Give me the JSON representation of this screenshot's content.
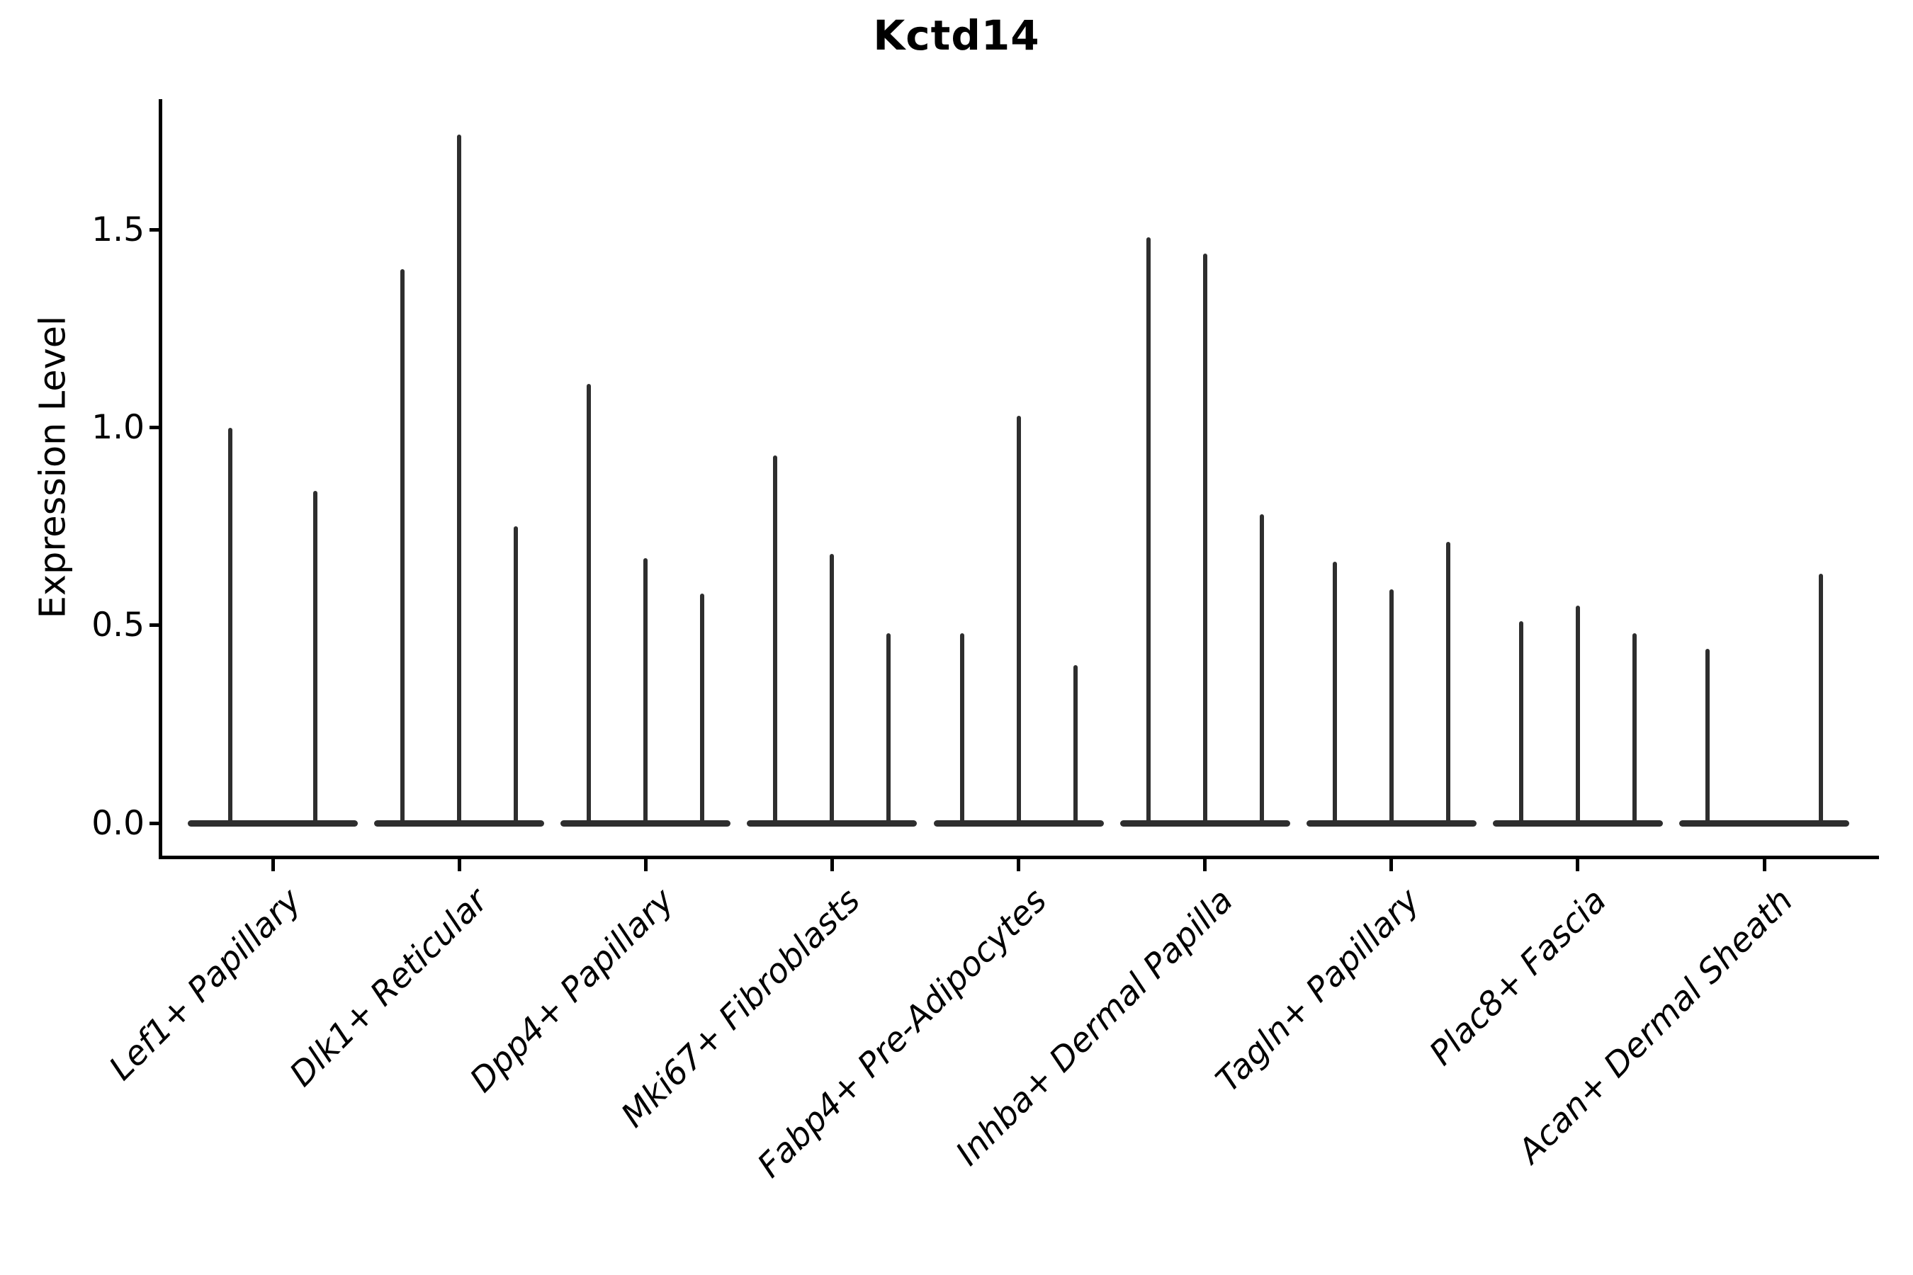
{
  "chart_data": {
    "type": "violin",
    "title": "Kctd14",
    "xlabel": "",
    "ylabel": "Expression Level",
    "yticks": [
      "0.0",
      "0.5",
      "1.0",
      "1.5"
    ],
    "ylim": [
      -0.09,
      1.83
    ],
    "grid": false,
    "legend": "none",
    "categories": [
      "Lef1+ Papillary",
      "Dlk1+ Reticular",
      "Dpp4+ Papillary",
      "Mki67+ Fibroblasts",
      "Fabp4+ Pre-Adipocytes",
      "Inhba+ Dermal Papilla",
      "Tagln+ Papillary",
      "Plac8+ Fascia",
      "Acan+ Dermal Sheath"
    ],
    "groups": [
      {
        "category": "Lef1+ Papillary",
        "violin_maxima": [
          1.0,
          0.84
        ]
      },
      {
        "category": "Dlk1+ Reticular",
        "violin_maxima": [
          1.4,
          1.74,
          0.75
        ]
      },
      {
        "category": "Dpp4+ Papillary",
        "violin_maxima": [
          1.11,
          0.67,
          0.58
        ]
      },
      {
        "category": "Mki67+ Fibroblasts",
        "violin_maxima": [
          0.93,
          0.68,
          0.48
        ]
      },
      {
        "category": "Fabp4+ Pre-Adipocytes",
        "violin_maxima": [
          0.48,
          1.03,
          0.4
        ]
      },
      {
        "category": "Inhba+ Dermal Papilla",
        "violin_maxima": [
          1.48,
          1.44,
          0.78
        ]
      },
      {
        "category": "Tagln+ Papillary",
        "violin_maxima": [
          0.66,
          0.59,
          0.71
        ]
      },
      {
        "category": "Plac8+ Fascia",
        "violin_maxima": [
          0.51,
          0.55,
          0.48
        ]
      },
      {
        "category": "Acan+ Dermal Sheath",
        "violin_maxima": [
          0.44,
          0.0,
          0.63
        ]
      }
    ],
    "colors": {
      "violin": "#2e2e2e",
      "axis": "#000000",
      "text": "#000000",
      "background": "#ffffff"
    }
  }
}
